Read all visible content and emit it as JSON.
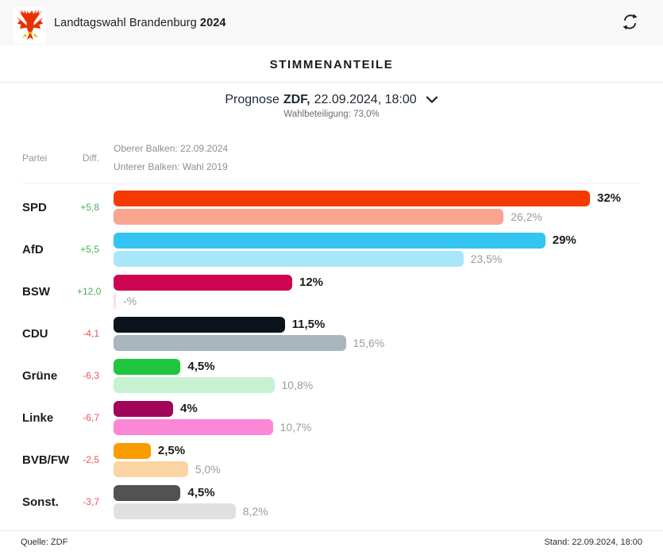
{
  "header": {
    "title_regular": "Landtagswahl Brandenburg",
    "title_bold": "2024",
    "logo": "brandenburg-eagle",
    "refresh_icon": "refresh-icon"
  },
  "chart_data": {
    "type": "bar",
    "title": "STIMMENANTEILE",
    "subtitle": {
      "prefix": "Prognose",
      "source_bold": "ZDF,",
      "datetime": "22.09.2024, 18:00"
    },
    "turnout": "Wahlbeteiligung: 73,0%",
    "legend": {
      "party_col": "Partei",
      "diff_col": "Diff.",
      "upper_bar": "Oberer Balken: 22.09.2024",
      "lower_bar": "Unterer Balken: Wahl 2019"
    },
    "x_max_percent": 36.9,
    "orientation": "horizontal",
    "rows": [
      {
        "party": "SPD",
        "diff": "+5,8",
        "current": 32,
        "current_label": "32%",
        "previous": 26.2,
        "previous_label": "26,2%",
        "color_current": "#f53a00",
        "color_previous": "#f8a48f"
      },
      {
        "party": "AfD",
        "diff": "+5,5",
        "current": 29,
        "current_label": "29%",
        "previous": 23.5,
        "previous_label": "23,5%",
        "color_current": "#33c4f1",
        "color_previous": "#a8e6fa"
      },
      {
        "party": "BSW",
        "diff": "+12,0",
        "current": 12,
        "current_label": "12%",
        "previous": null,
        "previous_label": "-%",
        "color_current": "#cd0551",
        "color_previous": "#fcdfe9"
      },
      {
        "party": "CDU",
        "diff": "-4,1",
        "current": 11.5,
        "current_label": "11,5%",
        "previous": 15.6,
        "previous_label": "15,6%",
        "color_current": "#0b131d",
        "color_previous": "#a8b6be"
      },
      {
        "party": "Grüne",
        "diff": "-6,3",
        "current": 4.5,
        "current_label": "4,5%",
        "previous": 10.8,
        "previous_label": "10,8%",
        "color_current": "#1ec73e",
        "color_previous": "#c6f2d2"
      },
      {
        "party": "Linke",
        "diff": "-6,7",
        "current": 4,
        "current_label": "4%",
        "previous": 10.7,
        "previous_label": "10,7%",
        "color_current": "#a00558",
        "color_previous": "#fb87d7"
      },
      {
        "party": "BVB/FW",
        "diff": "-2,5",
        "current": 2.5,
        "current_label": "2,5%",
        "previous": 5.0,
        "previous_label": "5,0%",
        "color_current": "#f89c00",
        "color_previous": "#fbd4a3"
      },
      {
        "party": "Sonst.",
        "diff": "-3,7",
        "current": 4.5,
        "current_label": "4,5%",
        "previous": 8.2,
        "previous_label": "8,2%",
        "color_current": "#525252",
        "color_previous": "#e0e0e0"
      }
    ],
    "colors": {
      "diff_positive": "#46b254",
      "diff_negative": "#f35056",
      "header_background": "#f8f8f8",
      "muted_text": "#9b9b9b"
    }
  },
  "footer": {
    "source": "Quelle: ZDF",
    "stand": "Stand: 22.09.2024, 18:00"
  }
}
